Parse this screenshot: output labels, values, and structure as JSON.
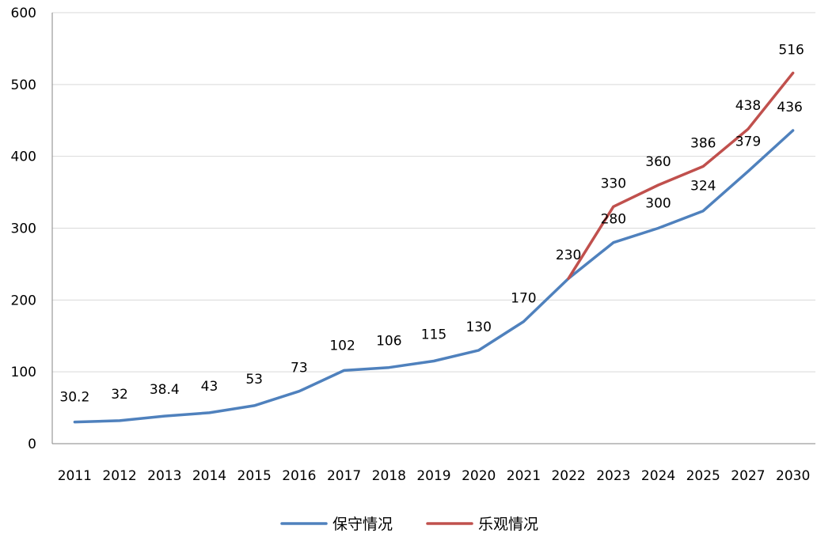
{
  "chart_data": {
    "type": "line",
    "title": "",
    "xlabel": "",
    "ylabel": "",
    "categories": [
      "2011",
      "2012",
      "2013",
      "2014",
      "2015",
      "2016",
      "2017",
      "2018",
      "2019",
      "2020",
      "2021",
      "2022",
      "2023",
      "2024",
      "2025",
      "2027",
      "2030"
    ],
    "ylim": [
      0,
      600
    ],
    "yticks": [
      0,
      100,
      200,
      300,
      400,
      500,
      600
    ],
    "grid": true,
    "legend_position": "bottom",
    "series": [
      {
        "name": "保守情况",
        "color": "#4f81bd",
        "values": [
          30.2,
          32,
          38.4,
          43,
          53,
          73,
          102,
          106,
          115,
          130,
          170,
          230,
          280,
          300,
          324,
          379,
          436
        ],
        "labels": [
          "30.2",
          "32",
          "38.4",
          "43",
          "53",
          "73",
          "102",
          "106",
          "115",
          "130",
          "170",
          "230",
          "280",
          "300",
          "324",
          "379",
          "436"
        ]
      },
      {
        "name": "乐观情况",
        "color": "#c0504d",
        "values": [
          null,
          null,
          null,
          null,
          null,
          null,
          null,
          null,
          null,
          null,
          null,
          230,
          330,
          360,
          386,
          438,
          516
        ],
        "labels": [
          null,
          null,
          null,
          null,
          null,
          null,
          null,
          null,
          null,
          null,
          null,
          null,
          "330",
          "360",
          "386",
          "438",
          "516"
        ]
      }
    ]
  }
}
